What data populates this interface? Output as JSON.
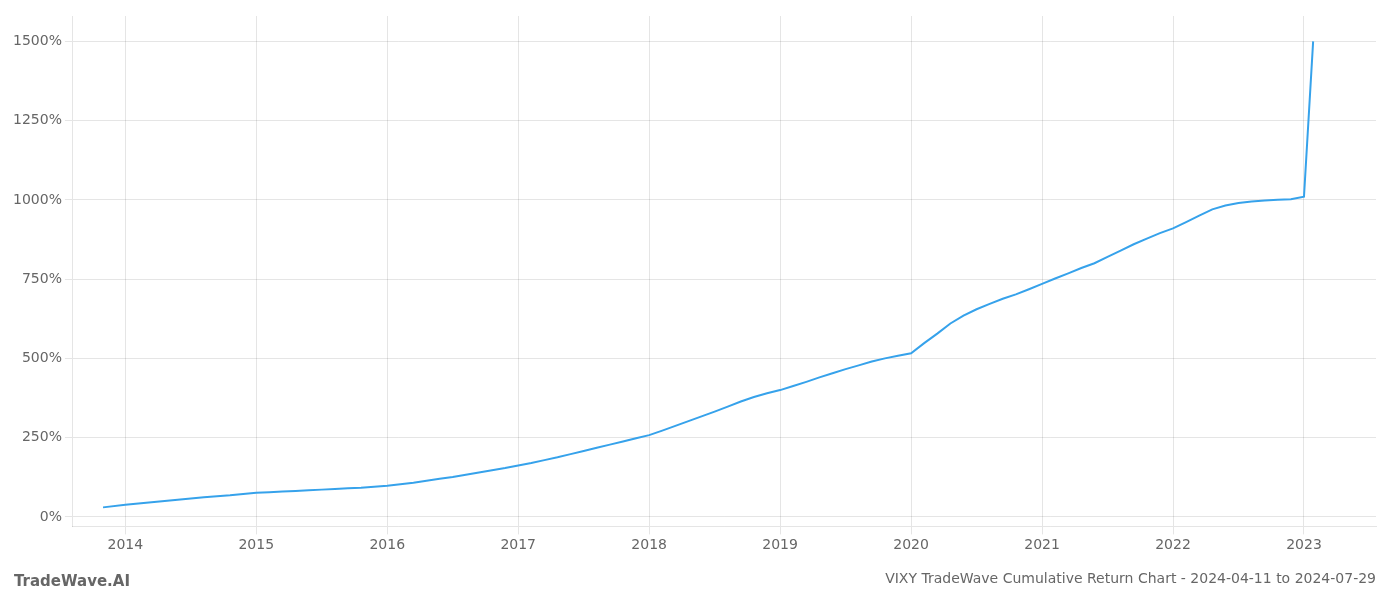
{
  "chart_data": {
    "type": "line",
    "title": "VIXY TradeWave Cumulative Return Chart - 2024-04-11 to 2024-07-29",
    "annotations": [
      "TradeWave.AI"
    ],
    "x": [
      2013.83,
      2014.0,
      2014.1,
      2014.2,
      2014.3,
      2014.4,
      2014.5,
      2014.6,
      2014.7,
      2014.8,
      2014.9,
      2015.0,
      2015.1,
      2015.2,
      2015.3,
      2015.4,
      2015.5,
      2015.6,
      2015.7,
      2015.8,
      2015.9,
      2016.0,
      2016.1,
      2016.2,
      2016.3,
      2016.4,
      2016.5,
      2016.6,
      2016.7,
      2016.8,
      2016.9,
      2017.0,
      2017.1,
      2017.2,
      2017.3,
      2017.4,
      2017.5,
      2017.6,
      2017.7,
      2017.8,
      2017.9,
      2018.0,
      2018.1,
      2018.2,
      2018.3,
      2018.4,
      2018.5,
      2018.6,
      2018.7,
      2018.8,
      2018.9,
      2019.0,
      2019.1,
      2019.2,
      2019.3,
      2019.4,
      2019.5,
      2019.6,
      2019.7,
      2019.8,
      2019.9,
      2020.0,
      2020.1,
      2020.2,
      2020.3,
      2020.4,
      2020.5,
      2020.6,
      2020.7,
      2020.8,
      2020.9,
      2021.0,
      2021.1,
      2021.2,
      2021.3,
      2021.4,
      2021.5,
      2021.6,
      2021.7,
      2021.8,
      2021.9,
      2022.0,
      2022.1,
      2022.2,
      2022.3,
      2022.4,
      2022.5,
      2022.6,
      2022.7,
      2022.8,
      2022.9,
      2023.0,
      2023.07
    ],
    "values": [
      30,
      38,
      42,
      46,
      50,
      54,
      58,
      62,
      65,
      68,
      72,
      76,
      78,
      80,
      82,
      84,
      86,
      88,
      90,
      92,
      95,
      98,
      103,
      108,
      114,
      120,
      126,
      133,
      140,
      147,
      154,
      162,
      170,
      179,
      188,
      198,
      208,
      218,
      228,
      238,
      248,
      258,
      272,
      287,
      302,
      317,
      332,
      348,
      364,
      378,
      390,
      400,
      413,
      426,
      440,
      453,
      466,
      478,
      490,
      500,
      508,
      516,
      548,
      578,
      610,
      635,
      655,
      672,
      688,
      702,
      718,
      735,
      752,
      768,
      785,
      800,
      820,
      840,
      860,
      878,
      895,
      910,
      930,
      950,
      970,
      982,
      990,
      995,
      998,
      1000,
      1002,
      1010,
      1500
    ],
    "xlim": [
      2013.6,
      2023.55
    ],
    "xticks": [
      2014,
      2015,
      2016,
      2017,
      2018,
      2019,
      2020,
      2021,
      2022,
      2023
    ],
    "ylim": [
      -30,
      1580
    ],
    "yticks": [
      {
        "value": 0,
        "label": "0%"
      },
      {
        "value": 250,
        "label": "250%"
      },
      {
        "value": 500,
        "label": "500%"
      },
      {
        "value": 750,
        "label": "750%"
      },
      {
        "value": 1000,
        "label": "1000%"
      },
      {
        "value": 1250,
        "label": "1250%"
      },
      {
        "value": 1500,
        "label": "1500%"
      }
    ],
    "grid": true
  }
}
